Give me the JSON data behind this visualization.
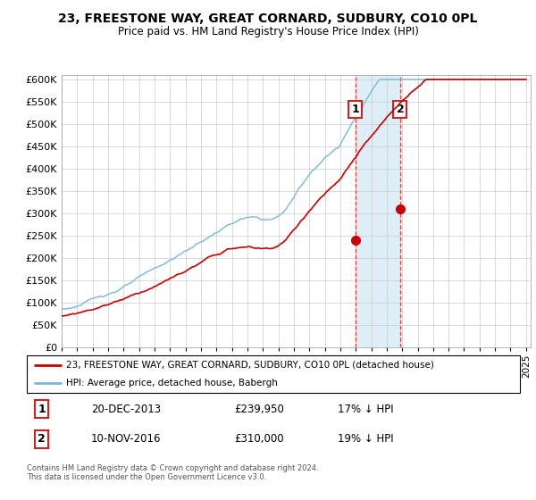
{
  "title": "23, FREESTONE WAY, GREAT CORNARD, SUDBURY, CO10 0PL",
  "subtitle": "Price paid vs. HM Land Registry's House Price Index (HPI)",
  "legend_line1": "23, FREESTONE WAY, GREAT CORNARD, SUDBURY, CO10 0PL (detached house)",
  "legend_line2": "HPI: Average price, detached house, Babergh",
  "transaction1_date": "20-DEC-2013",
  "transaction1_price": "£239,950",
  "transaction1_hpi": "17% ↓ HPI",
  "transaction2_date": "10-NOV-2016",
  "transaction2_price": "£310,000",
  "transaction2_hpi": "19% ↓ HPI",
  "footer": "Contains HM Land Registry data © Crown copyright and database right 2024.\nThis data is licensed under the Open Government Licence v3.0.",
  "hpi_color": "#7ab8d9",
  "price_color": "#cc0000",
  "shading_color": "#ddeef7",
  "dashed_line_color": "#dd4444",
  "ylim": [
    0,
    610000
  ],
  "yticks": [
    0,
    50000,
    100000,
    150000,
    200000,
    250000,
    300000,
    350000,
    400000,
    450000,
    500000,
    550000,
    600000
  ],
  "xlim_start": 1995,
  "xlim_end": 2025.3,
  "transaction1_year": 2013.97,
  "transaction2_year": 2016.87,
  "transaction1_price_val": 239950,
  "transaction2_price_val": 310000
}
